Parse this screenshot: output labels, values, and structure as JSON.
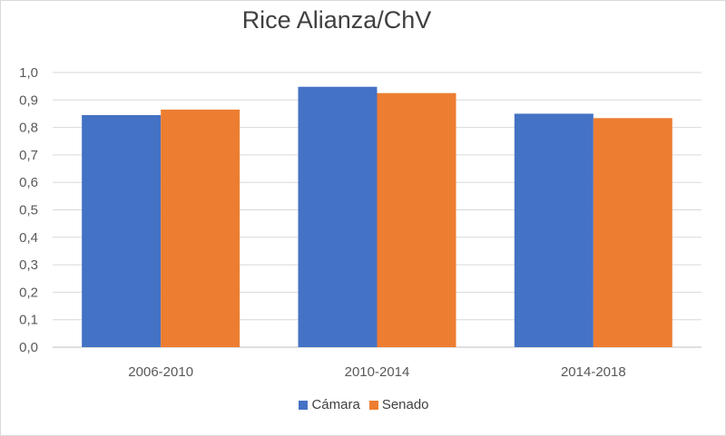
{
  "chart_data": {
    "type": "bar",
    "title": "Rice Alianza/ChV",
    "categories": [
      "2006-2010",
      "2010-2014",
      "2014-2018"
    ],
    "series": [
      {
        "name": "Cámara",
        "color": "#4472c4",
        "values": [
          0.845,
          0.948,
          0.85
        ]
      },
      {
        "name": "Senado",
        "color": "#ed7d31",
        "values": [
          0.865,
          0.925,
          0.834
        ]
      }
    ],
    "ylim": [
      0,
      1.0
    ],
    "yticks": [
      "0,0",
      "0,1",
      "0,2",
      "0,3",
      "0,4",
      "0,5",
      "0,6",
      "0,7",
      "0,8",
      "0,9",
      "1,0"
    ],
    "grid": true,
    "legend_position": "bottom"
  }
}
